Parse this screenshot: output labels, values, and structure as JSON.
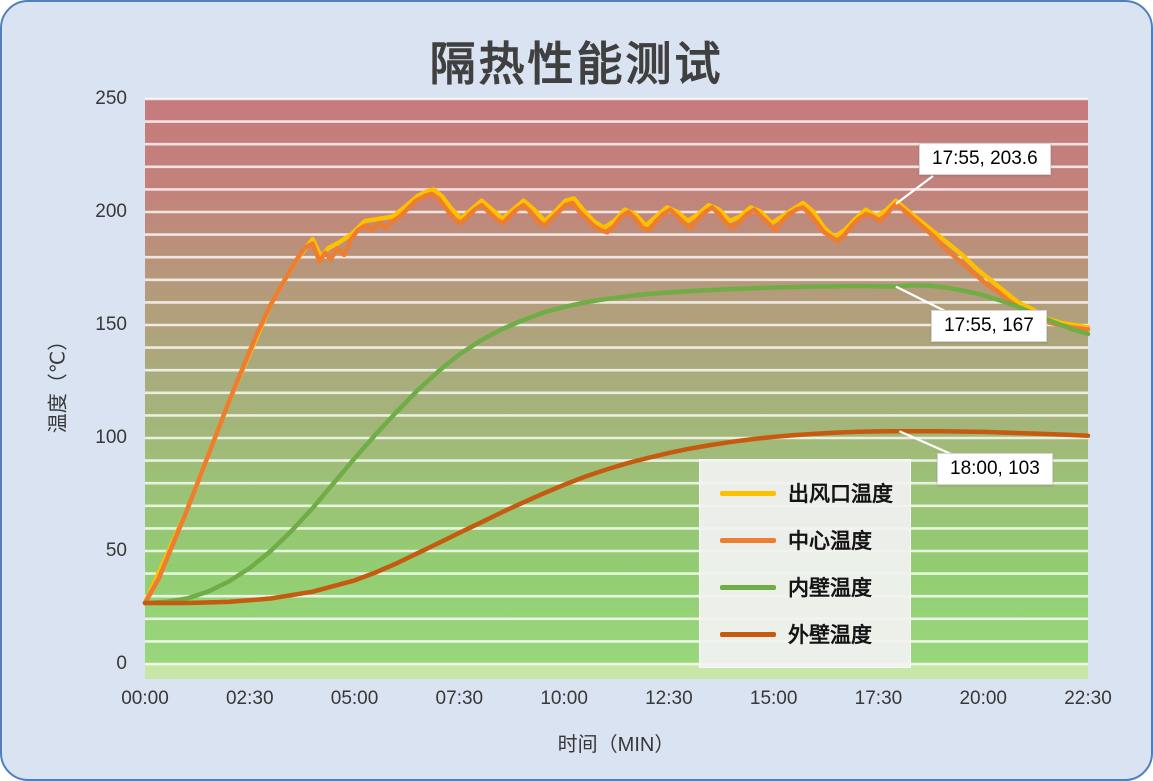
{
  "theme": {
    "card_background": "#DAE3F1",
    "card_border": "#4E80BC",
    "title_color": "#404040",
    "grid_color": "#FFFFFF",
    "legend_background": "#F2F2F2",
    "annotation_background": "#FFFFFF"
  },
  "chart_data": {
    "type": "line",
    "title": "隔热性能测试",
    "xlabel": "时间（MIN）",
    "ylabel": "温度（℃）",
    "ylim": [
      0,
      250
    ],
    "xlim_seconds": [
      0,
      1350
    ],
    "grid_step": 10,
    "grid_style": "white horizontal stripe lines every 10°C over red-to-green gradient plot background",
    "legend_position": "inside lower-right",
    "x_ticks": [
      "00:00",
      "02:30",
      "05:00",
      "07:30",
      "10:00",
      "12:30",
      "15:00",
      "17:30",
      "20:00",
      "22:30"
    ],
    "y_ticks": [
      "250",
      "200",
      "150",
      "100",
      "50",
      "0"
    ],
    "plot_bg_gradient": [
      "#C67A7C",
      "#C2837B",
      "#B59A7B",
      "#A8AD7C",
      "#9DC077",
      "#92CD72",
      "#9AD77C"
    ],
    "plot_bg_bottom_strip": "#C9E6A9",
    "series": [
      {
        "id": "outlet",
        "name": "出风口温度",
        "color": "#FFC000",
        "points": [
          [
            0,
            27
          ],
          [
            60,
            68
          ],
          [
            120,
            116
          ],
          [
            180,
            159
          ],
          [
            215,
            178
          ],
          [
            240,
            188
          ],
          [
            252,
            180
          ],
          [
            262,
            184
          ],
          [
            275,
            186
          ],
          [
            295,
            190
          ],
          [
            315,
            196
          ],
          [
            335,
            197
          ],
          [
            355,
            198
          ],
          [
            375,
            203
          ],
          [
            390,
            207
          ],
          [
            403,
            209
          ],
          [
            413,
            210
          ],
          [
            425,
            207
          ],
          [
            437,
            202
          ],
          [
            452,
            197
          ],
          [
            467,
            201
          ],
          [
            482,
            205
          ],
          [
            497,
            201
          ],
          [
            512,
            197
          ],
          [
            527,
            201
          ],
          [
            542,
            205
          ],
          [
            557,
            201
          ],
          [
            572,
            196
          ],
          [
            587,
            200
          ],
          [
            602,
            205
          ],
          [
            614,
            206
          ],
          [
            627,
            201
          ],
          [
            642,
            196
          ],
          [
            657,
            193
          ],
          [
            672,
            196
          ],
          [
            687,
            201
          ],
          [
            702,
            199
          ],
          [
            717,
            194
          ],
          [
            732,
            198
          ],
          [
            747,
            202
          ],
          [
            762,
            200
          ],
          [
            777,
            196
          ],
          [
            792,
            199
          ],
          [
            807,
            203
          ],
          [
            822,
            201
          ],
          [
            837,
            196
          ],
          [
            852,
            198
          ],
          [
            867,
            202
          ],
          [
            882,
            200
          ],
          [
            897,
            195
          ],
          [
            912,
            198
          ],
          [
            927,
            201
          ],
          [
            942,
            204
          ],
          [
            957,
            200
          ],
          [
            972,
            193
          ],
          [
            987,
            189
          ],
          [
            1002,
            192
          ],
          [
            1017,
            197
          ],
          [
            1032,
            201
          ],
          [
            1047,
            198
          ],
          [
            1062,
            201
          ],
          [
            1075,
            205
          ],
          [
            1090,
            201
          ],
          [
            1110,
            196
          ],
          [
            1130,
            191
          ],
          [
            1150,
            186
          ],
          [
            1170,
            181
          ],
          [
            1190,
            175
          ],
          [
            1210,
            170
          ],
          [
            1230,
            165
          ],
          [
            1250,
            160
          ],
          [
            1270,
            157
          ],
          [
            1290,
            153
          ],
          [
            1310,
            151
          ],
          [
            1330,
            150
          ],
          [
            1350,
            149
          ]
        ]
      },
      {
        "id": "center",
        "name": "中心温度",
        "color": "#ED7D31",
        "points": [
          [
            0,
            27
          ],
          [
            20,
            38
          ],
          [
            40,
            53
          ],
          [
            60,
            68
          ],
          [
            80,
            84
          ],
          [
            100,
            100
          ],
          [
            120,
            116
          ],
          [
            140,
            131
          ],
          [
            160,
            146
          ],
          [
            180,
            159
          ],
          [
            200,
            170
          ],
          [
            215,
            178
          ],
          [
            228,
            184
          ],
          [
            240,
            186
          ],
          [
            250,
            178
          ],
          [
            258,
            182
          ],
          [
            266,
            179
          ],
          [
            275,
            184
          ],
          [
            285,
            181
          ],
          [
            295,
            188
          ],
          [
            305,
            192
          ],
          [
            315,
            194
          ],
          [
            325,
            192
          ],
          [
            335,
            195
          ],
          [
            345,
            193
          ],
          [
            355,
            196
          ],
          [
            365,
            198
          ],
          [
            375,
            201
          ],
          [
            388,
            205
          ],
          [
            400,
            207
          ],
          [
            410,
            208
          ],
          [
            420,
            206
          ],
          [
            432,
            201
          ],
          [
            443,
            197
          ],
          [
            452,
            195
          ],
          [
            462,
            198
          ],
          [
            472,
            201
          ],
          [
            482,
            203
          ],
          [
            492,
            200
          ],
          [
            502,
            197
          ],
          [
            512,
            195
          ],
          [
            522,
            198
          ],
          [
            532,
            201
          ],
          [
            542,
            203
          ],
          [
            552,
            200
          ],
          [
            562,
            196
          ],
          [
            572,
            194
          ],
          [
            582,
            197
          ],
          [
            592,
            200
          ],
          [
            602,
            203
          ],
          [
            612,
            204
          ],
          [
            622,
            200
          ],
          [
            632,
            197
          ],
          [
            642,
            194
          ],
          [
            652,
            192
          ],
          [
            662,
            191
          ],
          [
            672,
            194
          ],
          [
            682,
            198
          ],
          [
            692,
            200
          ],
          [
            702,
            197
          ],
          [
            712,
            193
          ],
          [
            722,
            192
          ],
          [
            732,
            196
          ],
          [
            742,
            199
          ],
          [
            752,
            201
          ],
          [
            762,
            198
          ],
          [
            772,
            195
          ],
          [
            782,
            193
          ],
          [
            792,
            197
          ],
          [
            802,
            200
          ],
          [
            812,
            202
          ],
          [
            822,
            199
          ],
          [
            832,
            195
          ],
          [
            842,
            193
          ],
          [
            852,
            196
          ],
          [
            862,
            199
          ],
          [
            872,
            201
          ],
          [
            882,
            198
          ],
          [
            892,
            195
          ],
          [
            902,
            192
          ],
          [
            912,
            196
          ],
          [
            922,
            199
          ],
          [
            932,
            201
          ],
          [
            942,
            202
          ],
          [
            952,
            199
          ],
          [
            962,
            195
          ],
          [
            972,
            191
          ],
          [
            982,
            189
          ],
          [
            992,
            187
          ],
          [
            1002,
            190
          ],
          [
            1012,
            194
          ],
          [
            1022,
            197
          ],
          [
            1032,
            199
          ],
          [
            1042,
            198
          ],
          [
            1052,
            196
          ],
          [
            1062,
            199
          ],
          [
            1070,
            202
          ],
          [
            1075,
            203.6
          ],
          [
            1085,
            201
          ],
          [
            1100,
            197
          ],
          [
            1115,
            193
          ],
          [
            1130,
            189
          ],
          [
            1145,
            184
          ],
          [
            1160,
            180
          ],
          [
            1175,
            176
          ],
          [
            1190,
            172
          ],
          [
            1205,
            168
          ],
          [
            1220,
            165
          ],
          [
            1235,
            161
          ],
          [
            1250,
            158
          ],
          [
            1265,
            156
          ],
          [
            1280,
            153
          ],
          [
            1295,
            151
          ],
          [
            1310,
            150
          ],
          [
            1325,
            149
          ],
          [
            1350,
            148
          ]
        ]
      },
      {
        "id": "inner",
        "name": "内壁温度",
        "color": "#70AD47",
        "points": [
          [
            0,
            27
          ],
          [
            30,
            27.5
          ],
          [
            60,
            29
          ],
          [
            90,
            32
          ],
          [
            120,
            36.5
          ],
          [
            150,
            42.5
          ],
          [
            180,
            50
          ],
          [
            210,
            59
          ],
          [
            240,
            69
          ],
          [
            270,
            80
          ],
          [
            300,
            91
          ],
          [
            330,
            101.5
          ],
          [
            360,
            111.5
          ],
          [
            390,
            121
          ],
          [
            420,
            129.5
          ],
          [
            450,
            137
          ],
          [
            480,
            143
          ],
          [
            510,
            148
          ],
          [
            540,
            152
          ],
          [
            570,
            155.5
          ],
          [
            600,
            158
          ],
          [
            630,
            160
          ],
          [
            660,
            161.5
          ],
          [
            690,
            162.7
          ],
          [
            720,
            163.7
          ],
          [
            750,
            164.4
          ],
          [
            780,
            165
          ],
          [
            810,
            165.5
          ],
          [
            840,
            165.9
          ],
          [
            870,
            166.3
          ],
          [
            900,
            166.6
          ],
          [
            930,
            166.8
          ],
          [
            960,
            167
          ],
          [
            990,
            167.1
          ],
          [
            1020,
            167.2
          ],
          [
            1050,
            167.1
          ],
          [
            1075,
            167
          ],
          [
            1100,
            167.6
          ],
          [
            1125,
            167.3
          ],
          [
            1150,
            166.4
          ],
          [
            1175,
            165
          ],
          [
            1200,
            163.2
          ],
          [
            1225,
            160.8
          ],
          [
            1250,
            158
          ],
          [
            1275,
            154.8
          ],
          [
            1300,
            151.4
          ],
          [
            1325,
            148.4
          ],
          [
            1350,
            146
          ]
        ]
      },
      {
        "id": "outer",
        "name": "外壁温度",
        "color": "#C55A11",
        "points": [
          [
            0,
            27
          ],
          [
            60,
            27
          ],
          [
            120,
            27.5
          ],
          [
            180,
            29
          ],
          [
            240,
            32
          ],
          [
            300,
            37
          ],
          [
            330,
            40.5
          ],
          [
            360,
            44.5
          ],
          [
            390,
            49
          ],
          [
            420,
            53.5
          ],
          [
            450,
            58
          ],
          [
            480,
            62.5
          ],
          [
            510,
            67
          ],
          [
            540,
            71.3
          ],
          [
            570,
            75.4
          ],
          [
            600,
            79.3
          ],
          [
            630,
            82.9
          ],
          [
            660,
            86
          ],
          [
            690,
            88.8
          ],
          [
            720,
            91.2
          ],
          [
            750,
            93.4
          ],
          [
            780,
            95.3
          ],
          [
            810,
            96.9
          ],
          [
            840,
            98.3
          ],
          [
            870,
            99.5
          ],
          [
            900,
            100.5
          ],
          [
            930,
            101.3
          ],
          [
            960,
            101.9
          ],
          [
            990,
            102.4
          ],
          [
            1020,
            102.8
          ],
          [
            1050,
            102.9
          ],
          [
            1080,
            103
          ],
          [
            1140,
            103
          ],
          [
            1200,
            102.7
          ],
          [
            1260,
            102.1
          ],
          [
            1320,
            101.4
          ],
          [
            1350,
            101
          ]
        ]
      }
    ],
    "annotations": [
      {
        "text": "17:55, 203.6",
        "t_seconds": 1075,
        "value": 203.6,
        "series": "center"
      },
      {
        "text": "17:55, 167",
        "t_seconds": 1075,
        "value": 167,
        "series": "inner"
      },
      {
        "text": "18:00, 103",
        "t_seconds": 1080,
        "value": 103,
        "series": "outer"
      }
    ]
  }
}
